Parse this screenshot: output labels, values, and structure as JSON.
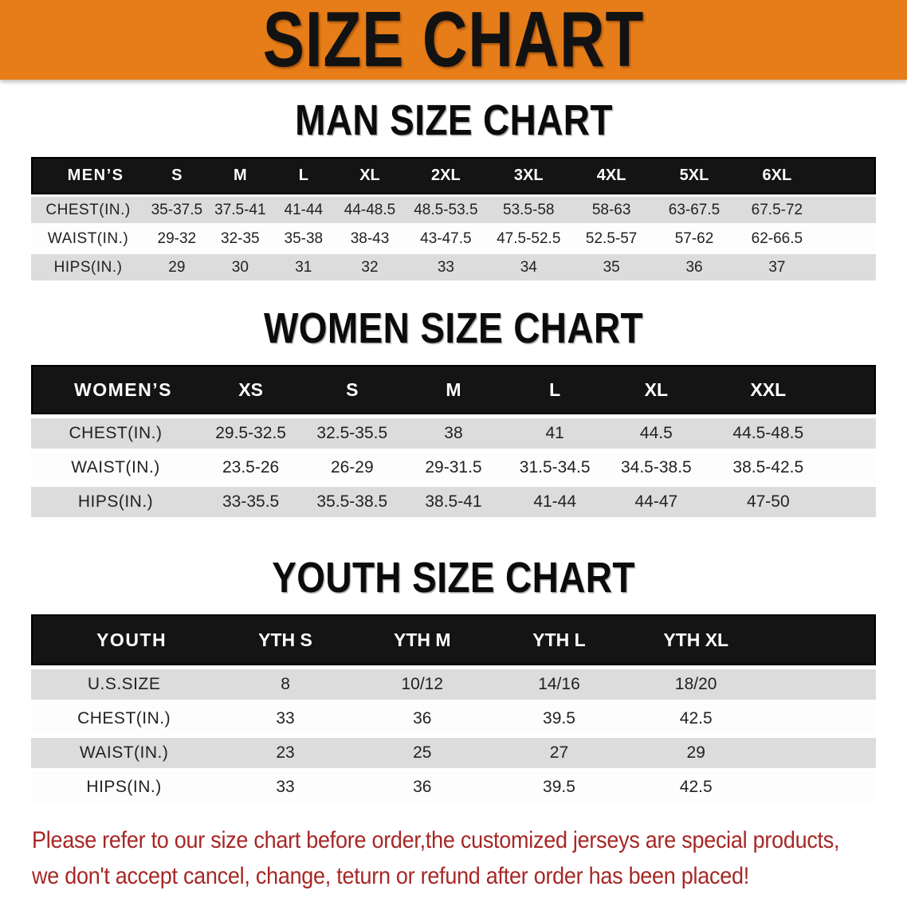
{
  "banner": {
    "title": "SIZE CHART"
  },
  "sections": [
    {
      "id": "men",
      "heading": "MAN SIZE CHART",
      "header_label": "MEN’S",
      "columns": [
        "S",
        "M",
        "L",
        "XL",
        "2XL",
        "3XL",
        "4XL",
        "5XL",
        "6XL"
      ],
      "rows": [
        {
          "label": "CHEST(IN.)",
          "values": [
            "35-37.5",
            "37.5-41",
            "41-44",
            "44-48.5",
            "48.5-53.5",
            "53.5-58",
            "58-63",
            "63-67.5",
            "67.5-72"
          ]
        },
        {
          "label": "WAIST(IN.)",
          "values": [
            "29-32",
            "32-35",
            "35-38",
            "38-43",
            "43-47.5",
            "47.5-52.5",
            "52.5-57",
            "57-62",
            "62-66.5"
          ]
        },
        {
          "label": "HIPS(IN.)",
          "values": [
            "29",
            "30",
            "31",
            "32",
            "33",
            "34",
            "35",
            "36",
            "37"
          ]
        }
      ]
    },
    {
      "id": "women",
      "heading": "WOMEN SIZE CHART",
      "header_label": "WOMEN’S",
      "columns": [
        "XS",
        "S",
        "M",
        "L",
        "XL",
        "XXL"
      ],
      "rows": [
        {
          "label": "CHEST(IN.)",
          "values": [
            "29.5-32.5",
            "32.5-35.5",
            "38",
            "41",
            "44.5",
            "44.5-48.5"
          ]
        },
        {
          "label": "WAIST(IN.)",
          "values": [
            "23.5-26",
            "26-29",
            "29-31.5",
            "31.5-34.5",
            "34.5-38.5",
            "38.5-42.5"
          ]
        },
        {
          "label": "HIPS(IN.)",
          "values": [
            "33-35.5",
            "35.5-38.5",
            "38.5-41",
            "41-44",
            "44-47",
            "47-50"
          ]
        }
      ]
    },
    {
      "id": "youth",
      "heading": "YOUTH SIZE CHART",
      "header_label": "YOUTH",
      "columns": [
        "YTH S",
        "YTH M",
        "YTH L",
        "YTH XL"
      ],
      "rows": [
        {
          "label": "U.S.SIZE",
          "values": [
            "8",
            "10/12",
            "14/16",
            "18/20"
          ]
        },
        {
          "label": "CHEST(IN.)",
          "values": [
            "33",
            "36",
            "39.5",
            "42.5"
          ]
        },
        {
          "label": "WAIST(IN.)",
          "values": [
            "23",
            "25",
            "27",
            "29"
          ]
        },
        {
          "label": "HIPS(IN.)",
          "values": [
            "33",
            "36",
            "39.5",
            "42.5"
          ]
        }
      ]
    }
  ],
  "disclaimer": {
    "line1": "Please refer to our size chart before order,the customized jerseys are special products,",
    "line2": "we don't accept cancel, change, teturn or refund after order has been placed!"
  },
  "colors": {
    "banner_bg": "#E67D19",
    "header_bar": "#141414",
    "row_shade": "#DCDCDC",
    "disclaimer_text": "#A62725"
  }
}
